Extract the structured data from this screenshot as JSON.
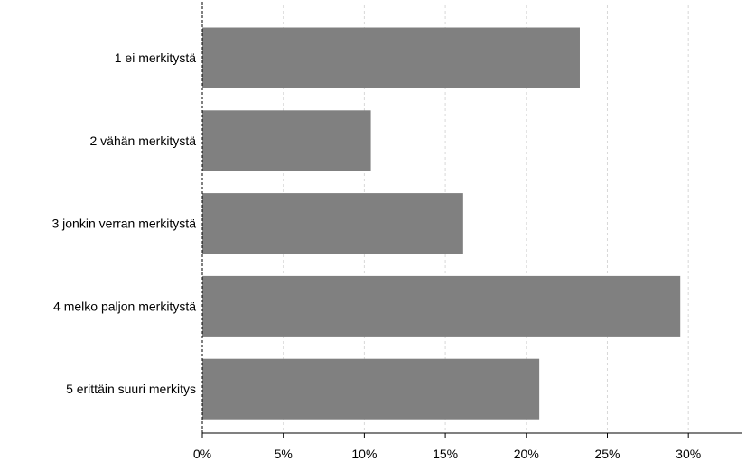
{
  "chart_data": {
    "type": "bar",
    "orientation": "horizontal",
    "categories": [
      "1 ei merkitystä",
      "2 vähän merkitystä",
      "3 jonkin verran merkitystä",
      "4 melko paljon merkitystä",
      "5 erittäin suuri merkitys"
    ],
    "values": [
      23.3,
      10.4,
      16.1,
      29.5,
      20.8
    ],
    "xlim": [
      0,
      33
    ],
    "x_ticks": [
      0,
      5,
      10,
      15,
      20,
      25,
      30
    ],
    "x_tick_labels": [
      "0%",
      "5%",
      "10%",
      "15%",
      "20%",
      "25%",
      "30%"
    ],
    "title": "",
    "xlabel": "",
    "ylabel": "",
    "grid": "vertical dashed",
    "bar_color": "#808080",
    "grid_color": "#d8d8d8",
    "axis_color": "#000000"
  }
}
